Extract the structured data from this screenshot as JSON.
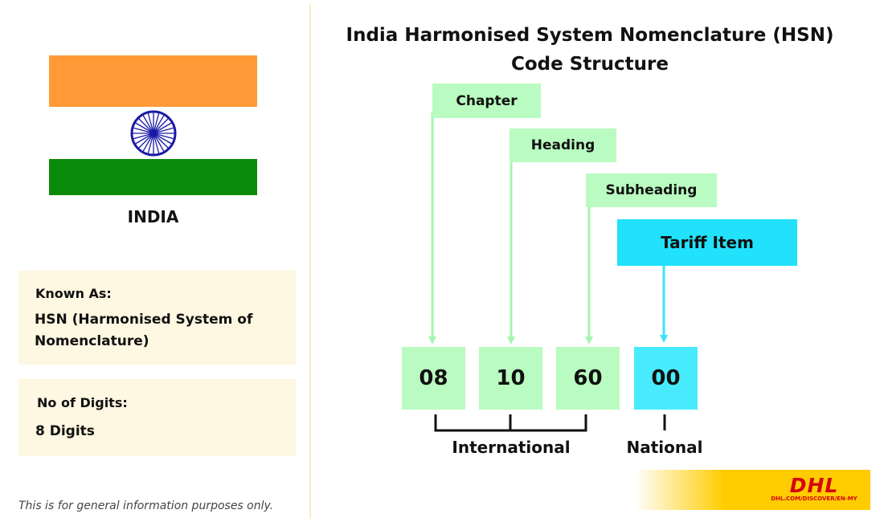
{
  "country": {
    "name": "INDIA"
  },
  "flag": {
    "saffron": "#ff9a36",
    "white": "#ffffff",
    "green": "#0a8a0a",
    "chakra": "#1a1aa6"
  },
  "info": {
    "known_as_label": "Known As:",
    "known_as_value": "HSN (Harmonised System of Nomenclature)",
    "digits_label": "No of Digits:",
    "digits_value": "8 Digits"
  },
  "footnote": "This is for general information purposes only.",
  "diagram": {
    "title_line1": "India Harmonised System Nomenclature (HSN)",
    "title_line2": "Code Structure",
    "labels": {
      "chapter": "Chapter",
      "heading": "Heading",
      "subheading": "Subheading",
      "tariff_item": "Tariff Item"
    },
    "digits": [
      "08",
      "10",
      "60",
      "00"
    ],
    "groups": {
      "international": "International",
      "national": "National"
    },
    "colors": {
      "international": "#b9fbc0",
      "national": "#48ebfd",
      "tariff_label": "#22e1fb"
    }
  },
  "brand": {
    "logo": "DHL",
    "url": "DHL.COM/DISCOVER/EN-MY",
    "yellow": "#ffcc00",
    "red": "#d40511"
  }
}
